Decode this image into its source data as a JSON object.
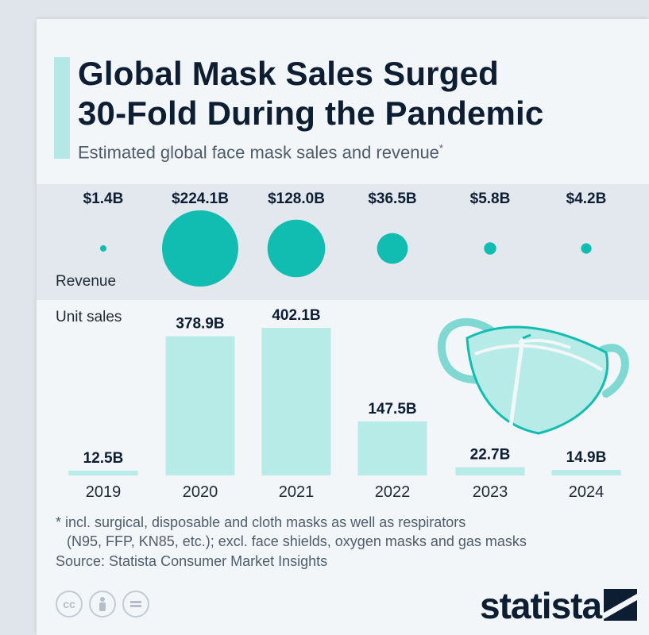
{
  "header": {
    "title_line1": "Global Mask Sales Surged",
    "title_line2": "30-Fold During the Pandemic",
    "subtitle": "Estimated global face mask sales and revenue",
    "subtitle_mark": "*"
  },
  "colors": {
    "accent": "#b3e8e4",
    "revenue_circle": "#11bdb0",
    "unit_bar": "#b6ebe7",
    "title": "#0d1e33"
  },
  "chart_data": {
    "type": "bar",
    "categories": [
      "2019",
      "2020",
      "2021",
      "2022",
      "2023",
      "2024"
    ],
    "series": [
      {
        "name": "Revenue",
        "values": [
          1.4,
          224.1,
          128.0,
          36.5,
          5.8,
          4.2
        ],
        "labels": [
          "$1.4B",
          "$224.1B",
          "$128.0B",
          "$36.5B",
          "$5.8B",
          "$4.2B"
        ],
        "mark": "circle"
      },
      {
        "name": "Unit sales",
        "values": [
          12.5,
          378.9,
          402.1,
          147.5,
          22.7,
          14.9
        ],
        "labels": [
          "12.5B",
          "378.9B",
          "402.1B",
          "147.5B",
          "22.7B",
          "14.9B"
        ],
        "mark": "bar"
      }
    ],
    "title": "Global Mask Sales Surged 30-Fold During the Pandemic",
    "subtitle": "Estimated global face mask sales and revenue",
    "xlabel": "",
    "ylabel": "",
    "ylim": [
      0,
      402.1
    ],
    "grid": false,
    "legend": "none"
  },
  "labels": {
    "revenue": "Revenue",
    "unit_sales": "Unit sales"
  },
  "footer": {
    "footnote_line1": "* incl. surgical, disposable and cloth masks as well as respirators",
    "footnote_line2": "(N95, FFP, KN85, etc.); excl. face shields, oxygen masks and gas masks",
    "source": "Source: Statista Consumer Market Insights",
    "brand": "statista",
    "license_icons": [
      "cc-icon",
      "attribution-icon",
      "no-derivatives-icon"
    ]
  }
}
